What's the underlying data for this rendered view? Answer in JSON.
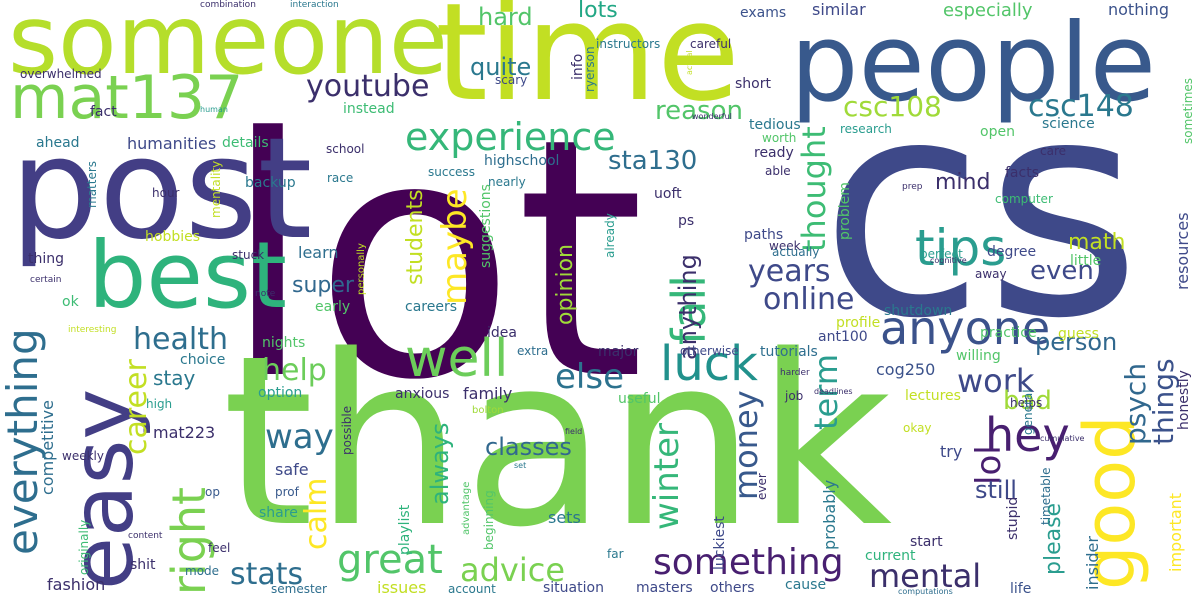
{
  "words": [
    {
      "text": "lot",
      "color": "#440154"
    },
    {
      "text": "cs",
      "color": "#3e4989"
    },
    {
      "text": "thank",
      "color": "#7ad151"
    },
    {
      "text": "time",
      "color": "#c2df23"
    },
    {
      "text": "people",
      "color": "#38598c"
    },
    {
      "text": "someone",
      "color": "#b5de2b"
    },
    {
      "text": "post",
      "color": "#433e85"
    },
    {
      "text": "best",
      "color": "#2eb37c"
    },
    {
      "text": "easy",
      "color": "#433e85"
    },
    {
      "text": "good",
      "color": "#fde725"
    },
    {
      "text": "mat137",
      "color": "#7ad151"
    },
    {
      "text": "experience",
      "color": "#35b779"
    },
    {
      "text": "tips",
      "color": "#2a9d8f"
    },
    {
      "text": "anyone",
      "color": "#3b528b"
    },
    {
      "text": "well",
      "color": "#6ccd5a"
    },
    {
      "text": "luck",
      "color": "#21918c"
    },
    {
      "text": "hey",
      "color": "#481f70"
    },
    {
      "text": "everything",
      "color": "#2e6e8e"
    },
    {
      "text": "right",
      "color": "#7ad151"
    },
    {
      "text": "youtube",
      "color": "#3b2f6b"
    },
    {
      "text": "csc108",
      "color": "#a0da39"
    },
    {
      "text": "csc148",
      "color": "#2a788e"
    },
    {
      "text": "thought",
      "color": "#3dbc74"
    },
    {
      "text": "maybe",
      "color": "#fde725"
    },
    {
      "text": "fall",
      "color": "#35b779"
    },
    {
      "text": "years",
      "color": "#3e4989"
    },
    {
      "text": "online",
      "color": "#3e4989"
    },
    {
      "text": "else",
      "color": "#2c728e"
    },
    {
      "text": "health",
      "color": "#2e6e8e"
    },
    {
      "text": "help",
      "color": "#6ccd5a"
    },
    {
      "text": "way",
      "color": "#2e6e8e"
    },
    {
      "text": "great",
      "color": "#52c569"
    },
    {
      "text": "advice",
      "color": "#7ad151"
    },
    {
      "text": "something",
      "color": "#481f70"
    },
    {
      "text": "mental",
      "color": "#3b2f6b"
    },
    {
      "text": "stats",
      "color": "#2e6e8e"
    },
    {
      "text": "winter",
      "color": "#35b779"
    },
    {
      "text": "money",
      "color": "#38598c"
    },
    {
      "text": "term",
      "color": "#2a9d8f"
    },
    {
      "text": "work",
      "color": "#3e4989"
    },
    {
      "text": "lol",
      "color": "#481f70"
    },
    {
      "text": "things",
      "color": "#3b528b"
    },
    {
      "text": "psych",
      "color": "#31688e"
    },
    {
      "text": "calm",
      "color": "#fde725"
    },
    {
      "text": "career",
      "color": "#c2df23"
    },
    {
      "text": "quite",
      "color": "#2a788e"
    },
    {
      "text": "hard",
      "color": "#52c569"
    },
    {
      "text": "lots",
      "color": "#22a785"
    },
    {
      "text": "reason",
      "color": "#52c569"
    },
    {
      "text": "sta130",
      "color": "#2e6e8e"
    },
    {
      "text": "mind",
      "color": "#3b2f6b"
    },
    {
      "text": "math",
      "color": "#c2df23"
    },
    {
      "text": "even",
      "color": "#3e4989"
    },
    {
      "text": "person",
      "color": "#31688e"
    },
    {
      "text": "bad",
      "color": "#a0da39"
    },
    {
      "text": "still",
      "color": "#3e4989"
    },
    {
      "text": "please",
      "color": "#2a9d8f"
    },
    {
      "text": "classes",
      "color": "#31688e"
    },
    {
      "text": "always",
      "color": "#2eb37c"
    },
    {
      "text": "anything",
      "color": "#3b2f6b"
    },
    {
      "text": "students",
      "color": "#c2df23"
    },
    {
      "text": "opinion",
      "color": "#a0da39"
    },
    {
      "text": "super",
      "color": "#31688e"
    },
    {
      "text": "stay",
      "color": "#2a788e"
    },
    {
      "text": "humanities",
      "color": "#3e4989"
    },
    {
      "text": "especially",
      "color": "#52c569"
    },
    {
      "text": "similar",
      "color": "#3e4989"
    },
    {
      "text": "nothing",
      "color": "#3b528b"
    },
    {
      "text": "exams",
      "color": "#3b528b"
    },
    {
      "text": "fashion",
      "color": "#3b2f6b"
    },
    {
      "text": "competitive",
      "color": "#2e6e8e"
    },
    {
      "text": "mat223",
      "color": "#3b2f6b"
    },
    {
      "text": "ant100",
      "color": "#3e4989"
    },
    {
      "text": "cog250",
      "color": "#3b528b"
    },
    {
      "text": "important",
      "color": "#fde725"
    },
    {
      "text": "resources",
      "color": "#3e4989"
    },
    {
      "text": "insider",
      "color": "#2e6e8e"
    },
    {
      "text": "sets",
      "color": "#2a788e"
    },
    {
      "text": "shit",
      "color": "#3b2f6b"
    },
    {
      "text": "issues",
      "color": "#c2df23"
    },
    {
      "text": "situation",
      "color": "#3e4989"
    },
    {
      "text": "masters",
      "color": "#3e4989"
    },
    {
      "text": "others",
      "color": "#3e4989"
    },
    {
      "text": "cause",
      "color": "#2a788e"
    },
    {
      "text": "life",
      "color": "#3b528b"
    },
    {
      "text": "start",
      "color": "#3b2f6b"
    },
    {
      "text": "current",
      "color": "#2eb37c"
    },
    {
      "text": "far",
      "color": "#2a788e"
    },
    {
      "text": "semester",
      "color": "#2e6e8e"
    },
    {
      "text": "account",
      "color": "#2a788e"
    },
    {
      "text": "mode",
      "color": "#2e6e8e"
    },
    {
      "text": "feel",
      "color": "#3b2f6b"
    },
    {
      "text": "share",
      "color": "#2a9d8f"
    },
    {
      "text": "prof",
      "color": "#38598c"
    },
    {
      "text": "op",
      "color": "#38598c"
    },
    {
      "text": "safe",
      "color": "#3e4989"
    },
    {
      "text": "weekly",
      "color": "#3b2f6b"
    },
    {
      "text": "high",
      "color": "#2a9d8f"
    },
    {
      "text": "choice",
      "color": "#2a788e"
    },
    {
      "text": "option",
      "color": "#2a9d8f"
    },
    {
      "text": "anxious",
      "color": "#3b2f6b"
    },
    {
      "text": "family",
      "color": "#3b2f6b"
    },
    {
      "text": "useful",
      "color": "#52c569"
    },
    {
      "text": "bolton",
      "color": "#a0da39"
    },
    {
      "text": "major",
      "color": "#3b2f6b"
    },
    {
      "text": "extra",
      "color": "#2e6e8e"
    },
    {
      "text": "otherwise",
      "color": "#3e4989"
    },
    {
      "text": "tutorials",
      "color": "#2e6e8e"
    },
    {
      "text": "idea",
      "color": "#3b2f6b"
    },
    {
      "text": "careers",
      "color": "#2a788e"
    },
    {
      "text": "nights",
      "color": "#52c569"
    },
    {
      "text": "early",
      "color": "#52c569"
    },
    {
      "text": "ok",
      "color": "#3dbc74"
    },
    {
      "text": "learn",
      "color": "#2e6e8e"
    },
    {
      "text": "thing",
      "color": "#3b2f6b"
    },
    {
      "text": "hobbies",
      "color": "#c2df23"
    },
    {
      "text": "stuck",
      "color": "#3b2f6b"
    },
    {
      "text": "backup",
      "color": "#2a788e"
    },
    {
      "text": "hour",
      "color": "#3b2f6b"
    },
    {
      "text": "race",
      "color": "#2a788e"
    },
    {
      "text": "school",
      "color": "#3b2f6b"
    },
    {
      "text": "ahead",
      "color": "#2a788e"
    },
    {
      "text": "details",
      "color": "#3dbc74"
    },
    {
      "text": "fact",
      "color": "#3b2f6b"
    },
    {
      "text": "instead",
      "color": "#3dbc74"
    },
    {
      "text": "overwhelmed",
      "color": "#3b2f6b"
    },
    {
      "text": "combination",
      "color": "#3b2f6b"
    },
    {
      "text": "interaction",
      "color": "#2a788e"
    },
    {
      "text": "instructors",
      "color": "#2a788e"
    },
    {
      "text": "careful",
      "color": "#3b2f6b"
    },
    {
      "text": "info",
      "color": "#3b2f6b"
    },
    {
      "text": "ryerson",
      "color": "#2a788e"
    },
    {
      "text": "scary",
      "color": "#3e4989"
    },
    {
      "text": "short",
      "color": "#3b2f6b"
    },
    {
      "text": "tedious",
      "color": "#2a788e"
    },
    {
      "text": "ready",
      "color": "#3b2f6b"
    },
    {
      "text": "able",
      "color": "#3b2f6b"
    },
    {
      "text": "research",
      "color": "#2a9d8f"
    },
    {
      "text": "science",
      "color": "#2a788e"
    },
    {
      "text": "open",
      "color": "#52c569"
    },
    {
      "text": "care",
      "color": "#3b2f6b"
    },
    {
      "text": "facts",
      "color": "#3b2f6b"
    },
    {
      "text": "computer",
      "color": "#3dbc74"
    },
    {
      "text": "degree",
      "color": "#3e4989"
    },
    {
      "text": "perfect",
      "color": "#2a9d8f"
    },
    {
      "text": "prep",
      "color": "#3b2f6b"
    },
    {
      "text": "cognitive",
      "color": "#3b2f6b"
    },
    {
      "text": "little",
      "color": "#52c569"
    },
    {
      "text": "away",
      "color": "#3b2f6b"
    },
    {
      "text": "guess",
      "color": "#c2df23"
    },
    {
      "text": "practice",
      "color": "#52c569"
    },
    {
      "text": "shutdown",
      "color": "#2a788e"
    },
    {
      "text": "profile",
      "color": "#c2df23"
    },
    {
      "text": "willing",
      "color": "#52c569"
    },
    {
      "text": "lectures",
      "color": "#c2df23"
    },
    {
      "text": "helps",
      "color": "#3b2f6b"
    },
    {
      "text": "okay",
      "color": "#c2df23"
    },
    {
      "text": "general",
      "color": "#2a788e"
    },
    {
      "text": "cumulative",
      "color": "#3b2f6b"
    },
    {
      "text": "timetable",
      "color": "#2e6e8e"
    },
    {
      "text": "stupid",
      "color": "#3b2f6b"
    },
    {
      "text": "honestly",
      "color": "#3b2f6b"
    },
    {
      "text": "sometimes",
      "color": "#52c569"
    },
    {
      "text": "computations",
      "color": "#2e6e8e"
    },
    {
      "text": "try",
      "color": "#3e4989"
    },
    {
      "text": "deadlines",
      "color": "#3b2f6b"
    },
    {
      "text": "harder",
      "color": "#3b2f6b"
    },
    {
      "text": "job",
      "color": "#3b2f6b"
    },
    {
      "text": "problem",
      "color": "#52c569"
    },
    {
      "text": "week",
      "color": "#3b2f6b"
    },
    {
      "text": "paths",
      "color": "#3e4989"
    },
    {
      "text": "actually",
      "color": "#2e6e8e"
    },
    {
      "text": "probably",
      "color": "#2a788e"
    },
    {
      "text": "luckiest",
      "color": "#3e4989"
    },
    {
      "text": "ever",
      "color": "#3b2f6b"
    },
    {
      "text": "uoft",
      "color": "#3b2f6b"
    },
    {
      "text": "ps",
      "color": "#3b2f6b"
    },
    {
      "text": "worth",
      "color": "#52c569"
    },
    {
      "text": "wonderful",
      "color": "#3b2f6b"
    },
    {
      "text": "actual",
      "color": "#c2df23"
    },
    {
      "text": "highschool",
      "color": "#2e6e8e"
    },
    {
      "text": "success",
      "color": "#2a788e"
    },
    {
      "text": "nearly",
      "color": "#2a788e"
    },
    {
      "text": "suggestions",
      "color": "#52c569"
    },
    {
      "text": "already",
      "color": "#2a9d8f"
    },
    {
      "text": "playlist",
      "color": "#2eb37c"
    },
    {
      "text": "beginning",
      "color": "#52c569"
    },
    {
      "text": "advantage",
      "color": "#52c569"
    },
    {
      "text": "possible",
      "color": "#3b2f6b"
    },
    {
      "text": "field",
      "color": "#3b2f6b"
    },
    {
      "text": "set",
      "color": "#2a788e"
    },
    {
      "text": "originally",
      "color": "#3dbc74"
    },
    {
      "text": "content",
      "color": "#3b2f6b"
    },
    {
      "text": "matters",
      "color": "#2a788e"
    },
    {
      "text": "mentality",
      "color": "#c2df23"
    },
    {
      "text": "personally",
      "color": "#c2df23"
    },
    {
      "text": "human",
      "color": "#2a9d8f"
    },
    {
      "text": "certain",
      "color": "#3b2f6b"
    },
    {
      "text": "note",
      "color": "#3b2f6b"
    },
    {
      "text": "interesting",
      "color": "#c2df23"
    }
  ]
}
